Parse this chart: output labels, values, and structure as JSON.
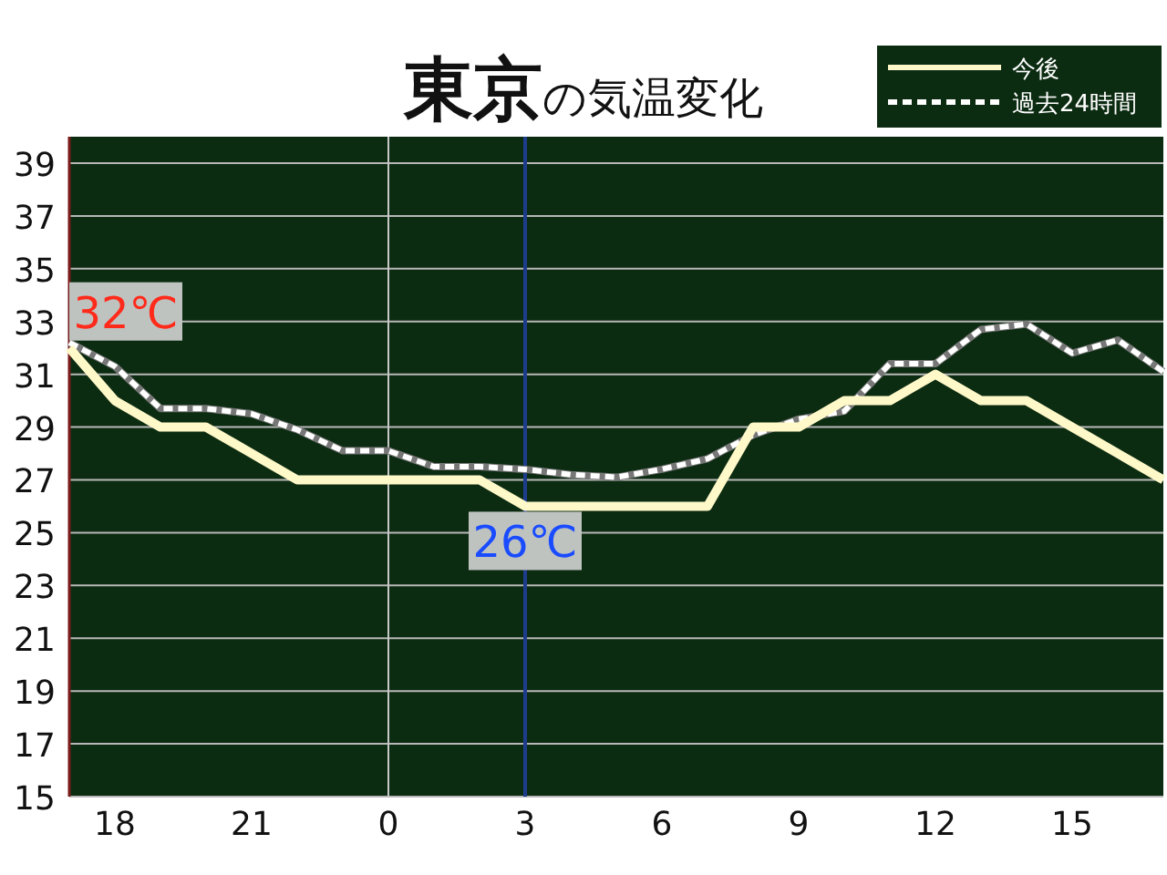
{
  "chart_data": {
    "type": "line",
    "title": "**東京**の気温変化",
    "categories": [
      null,
      "18",
      null,
      null,
      "21",
      null,
      null,
      "0",
      null,
      null,
      "3",
      null,
      null,
      "6",
      null,
      null,
      "9",
      null,
      null,
      "12",
      null,
      null,
      "15",
      null,
      null
    ],
    "series": [
      {
        "name": "今後",
        "color": "#fff8c8",
        "line_style": "solid",
        "values": [
          32,
          30,
          29,
          29,
          28,
          27,
          27,
          27,
          27,
          27,
          26,
          26,
          26,
          26,
          26,
          29,
          29,
          30,
          30,
          31,
          30,
          30,
          29,
          28,
          27
        ]
      },
      {
        "name": "過去24時間",
        "color": "#ffffff",
        "line_style": "dashed",
        "values": [
          32.2,
          31.3,
          29.7,
          29.7,
          29.5,
          28.9,
          28.1,
          28.1,
          27.5,
          27.5,
          27.4,
          27.2,
          27.1,
          27.4,
          27.8,
          28.7,
          29.3,
          29.6,
          31.4,
          31.4,
          32.7,
          32.9,
          31.8,
          32.3,
          31.1
        ]
      }
    ],
    "ylim": [
      15,
      40
    ],
    "yticks": [
      15,
      17,
      19,
      21,
      23,
      25,
      27,
      29,
      31,
      33,
      35,
      37,
      39
    ],
    "grid": "y",
    "legend": "top right",
    "ref_lines": [
      {
        "axis": "x",
        "value": "0",
        "color": "#c8c8c8"
      },
      {
        "axis": "x",
        "value": "3",
        "color": "#1e3c8c"
      }
    ],
    "annotations": [
      "32℃",
      {
        "text": "26℃",
        "x": "3",
        "y": 26
      }
    ]
  }
}
